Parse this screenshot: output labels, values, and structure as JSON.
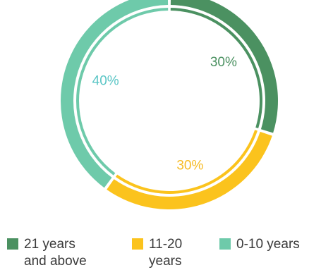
{
  "chart_data": {
    "type": "pie",
    "style": "donut",
    "title": "",
    "categories": [
      "21 years and above",
      "11-20 years",
      "0-10 years"
    ],
    "values": [
      30,
      30,
      40
    ],
    "labels": [
      "30%",
      "30%",
      "40%"
    ],
    "colors": [
      "#4b9161",
      "#fbc31d",
      "#6ecaaa"
    ],
    "label_colors": [
      "#4b9161",
      "#f6bb24",
      "#5bc6c6"
    ],
    "legend": {
      "placement": "bottom",
      "items": [
        {
          "label": "21 years\nand above",
          "color": "#4b9161"
        },
        {
          "label": "11-20\nyears",
          "color": "#fbc31d"
        },
        {
          "label": "0-10 years",
          "color": "#6ecaaa"
        }
      ]
    }
  }
}
